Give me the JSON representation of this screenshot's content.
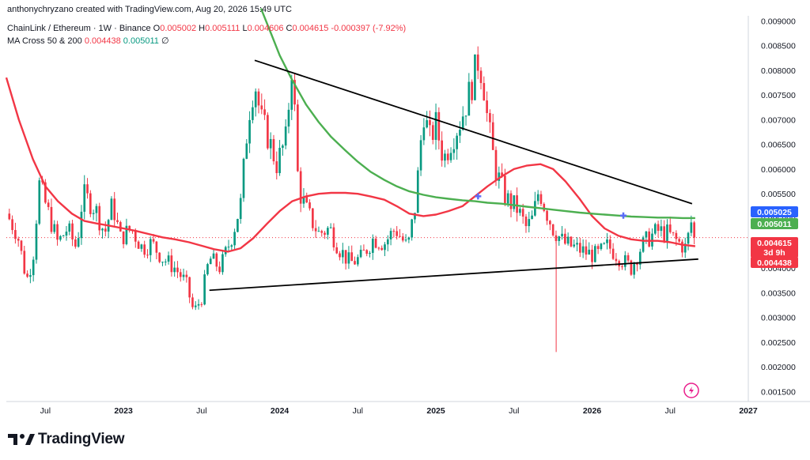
{
  "header": {
    "credit": "anthonychryzano created with TradingView.com, Aug 20, 2026 15:49 UTC",
    "symbol": "ChainLink / Ethereum · 1W · Binance",
    "o_label": "O",
    "o_value": "0.005002",
    "h_label": "H",
    "h_value": "0.005111",
    "l_label": "L",
    "l_value": "0.004606",
    "c_label": "C",
    "c_value": "0.004615",
    "change": "-0.000397 (-7.92%)",
    "indicator": "MA Cross 50 & 200",
    "ma_fast_value": "0.004438",
    "ma_slow_value": "0.005011",
    "indicator_symbol": "∅"
  },
  "brand": {
    "name": "TradingView"
  },
  "colors": {
    "up": "#089981",
    "down": "#f23645",
    "ma_fast": "#f23645",
    "ma_slow": "#4caf50",
    "trendline": "#000000",
    "cross": "#5b6cf7"
  },
  "badges": {
    "ma_slow_top": "0.005025",
    "ma_slow": "0.005011",
    "last_price": "0.004615",
    "countdown": "3d 9h",
    "ma_fast": "0.004438"
  },
  "chart_data": {
    "type": "candlestick",
    "timeframe": "1W",
    "y_axis_ticks": [
      "0.009000",
      "0.008500",
      "0.008000",
      "0.007500",
      "0.007000",
      "0.006500",
      "0.006000",
      "0.005500",
      "0.005000",
      "0.004500",
      "0.004000",
      "0.003500",
      "0.003000",
      "0.002500",
      "0.002000",
      "0.001500"
    ],
    "x_axis_ticks": [
      "Jul",
      "2023",
      "Jul",
      "2024",
      "Jul",
      "2025",
      "Jul",
      "2026",
      "Jul",
      "2027"
    ],
    "ylim": [
      0.0013,
      0.0091
    ],
    "xlim": [
      2022.25,
      2027.0
    ],
    "ohlc_anchors": [
      {
        "t": 2022.25,
        "close": 0.0051
      },
      {
        "t": 2022.32,
        "close": 0.0047
      },
      {
        "t": 2022.38,
        "close": 0.00375
      },
      {
        "t": 2022.42,
        "close": 0.0042
      },
      {
        "t": 2022.46,
        "close": 0.0057
      },
      {
        "t": 2022.52,
        "close": 0.0051
      },
      {
        "t": 2022.58,
        "close": 0.0045
      },
      {
        "t": 2022.64,
        "close": 0.0048
      },
      {
        "t": 2022.7,
        "close": 0.0044
      },
      {
        "t": 2022.74,
        "close": 0.0055
      },
      {
        "t": 2022.82,
        "close": 0.0052
      },
      {
        "t": 2022.88,
        "close": 0.0047
      },
      {
        "t": 2022.93,
        "close": 0.0053
      },
      {
        "t": 2022.98,
        "close": 0.0046
      },
      {
        "t": 2023.05,
        "close": 0.0048
      },
      {
        "t": 2023.12,
        "close": 0.0044
      },
      {
        "t": 2023.18,
        "close": 0.0045
      },
      {
        "t": 2023.25,
        "close": 0.0042
      },
      {
        "t": 2023.33,
        "close": 0.004
      },
      {
        "t": 2023.4,
        "close": 0.0037
      },
      {
        "t": 2023.45,
        "close": 0.0031
      },
      {
        "t": 2023.5,
        "close": 0.0034
      },
      {
        "t": 2023.55,
        "close": 0.0042
      },
      {
        "t": 2023.62,
        "close": 0.004
      },
      {
        "t": 2023.7,
        "close": 0.0047
      },
      {
        "t": 2023.75,
        "close": 0.0053
      },
      {
        "t": 2023.8,
        "close": 0.0071
      },
      {
        "t": 2023.84,
        "close": 0.0078
      },
      {
        "t": 2023.88,
        "close": 0.007
      },
      {
        "t": 2023.92,
        "close": 0.0067
      },
      {
        "t": 2023.98,
        "close": 0.0061
      },
      {
        "t": 2024.04,
        "close": 0.0066
      },
      {
        "t": 2024.08,
        "close": 0.0082
      },
      {
        "t": 2024.12,
        "close": 0.0056
      },
      {
        "t": 2024.18,
        "close": 0.0051
      },
      {
        "t": 2024.25,
        "close": 0.0047
      },
      {
        "t": 2024.32,
        "close": 0.0048
      },
      {
        "t": 2024.38,
        "close": 0.0044
      },
      {
        "t": 2024.45,
        "close": 0.0041
      },
      {
        "t": 2024.52,
        "close": 0.0042
      },
      {
        "t": 2024.6,
        "close": 0.0046
      },
      {
        "t": 2024.67,
        "close": 0.0045
      },
      {
        "t": 2024.74,
        "close": 0.0048
      },
      {
        "t": 2024.82,
        "close": 0.0044
      },
      {
        "t": 2024.87,
        "close": 0.0053
      },
      {
        "t": 2024.92,
        "close": 0.0072
      },
      {
        "t": 2024.96,
        "close": 0.0066
      },
      {
        "t": 2025.0,
        "close": 0.0069
      },
      {
        "t": 2025.05,
        "close": 0.0062
      },
      {
        "t": 2025.1,
        "close": 0.0066
      },
      {
        "t": 2025.16,
        "close": 0.007
      },
      {
        "t": 2025.22,
        "close": 0.0076
      },
      {
        "t": 2025.27,
        "close": 0.0082
      },
      {
        "t": 2025.3,
        "close": 0.0079
      },
      {
        "t": 2025.33,
        "close": 0.007
      },
      {
        "t": 2025.38,
        "close": 0.006
      },
      {
        "t": 2025.45,
        "close": 0.0054
      },
      {
        "t": 2025.52,
        "close": 0.0052
      },
      {
        "t": 2025.58,
        "close": 0.0048
      },
      {
        "t": 2025.62,
        "close": 0.005
      },
      {
        "t": 2025.66,
        "close": 0.0056
      },
      {
        "t": 2025.7,
        "close": 0.0052
      },
      {
        "t": 2025.75,
        "close": 0.0048
      },
      {
        "t": 2025.82,
        "close": 0.0045
      },
      {
        "t": 2025.9,
        "close": 0.0044
      },
      {
        "t": 2025.97,
        "close": 0.0043
      },
      {
        "t": 2026.03,
        "close": 0.00425
      },
      {
        "t": 2026.1,
        "close": 0.00445
      },
      {
        "t": 2026.18,
        "close": 0.0042
      },
      {
        "t": 2026.25,
        "close": 0.004
      },
      {
        "t": 2026.31,
        "close": 0.0044
      },
      {
        "t": 2026.36,
        "close": 0.0046
      },
      {
        "t": 2026.42,
        "close": 0.00475
      },
      {
        "t": 2026.48,
        "close": 0.0047
      },
      {
        "t": 2026.54,
        "close": 0.00455
      },
      {
        "t": 2026.6,
        "close": 0.0044
      },
      {
        "t": 2026.64,
        "close": 0.005
      },
      {
        "t": 2026.66,
        "close": 0.004615
      }
    ],
    "series": [
      {
        "name": "MA 50",
        "color": "#f23645",
        "points": [
          [
            2022.25,
            0.00785
          ],
          [
            2022.33,
            0.007
          ],
          [
            2022.42,
            0.0062
          ],
          [
            2022.5,
            0.00565
          ],
          [
            2022.58,
            0.00535
          ],
          [
            2022.67,
            0.0051
          ],
          [
            2022.75,
            0.00495
          ],
          [
            2022.83,
            0.0049
          ],
          [
            2022.92,
            0.00485
          ],
          [
            2023.0,
            0.0048
          ],
          [
            2023.08,
            0.00475
          ],
          [
            2023.17,
            0.00468
          ],
          [
            2023.25,
            0.00462
          ],
          [
            2023.33,
            0.00458
          ],
          [
            2023.42,
            0.00452
          ],
          [
            2023.5,
            0.00445
          ],
          [
            2023.58,
            0.00438
          ],
          [
            2023.67,
            0.00433
          ],
          [
            2023.75,
            0.0044
          ],
          [
            2023.83,
            0.0046
          ],
          [
            2023.92,
            0.0049
          ],
          [
            2024.0,
            0.00515
          ],
          [
            2024.08,
            0.00535
          ],
          [
            2024.17,
            0.00545
          ],
          [
            2024.25,
            0.0055
          ],
          [
            2024.33,
            0.00552
          ],
          [
            2024.42,
            0.00552
          ],
          [
            2024.5,
            0.0055
          ],
          [
            2024.58,
            0.00545
          ],
          [
            2024.67,
            0.00538
          ],
          [
            2024.75,
            0.00525
          ],
          [
            2024.83,
            0.0051
          ],
          [
            2024.92,
            0.00505
          ],
          [
            2025.0,
            0.00508
          ],
          [
            2025.08,
            0.00515
          ],
          [
            2025.17,
            0.00525
          ],
          [
            2025.25,
            0.00545
          ],
          [
            2025.33,
            0.00565
          ],
          [
            2025.42,
            0.00585
          ],
          [
            2025.5,
            0.006
          ],
          [
            2025.58,
            0.00607
          ],
          [
            2025.67,
            0.0061
          ],
          [
            2025.75,
            0.006
          ],
          [
            2025.83,
            0.00575
          ],
          [
            2025.92,
            0.0054
          ],
          [
            2026.0,
            0.00505
          ],
          [
            2026.08,
            0.0048
          ],
          [
            2026.17,
            0.00465
          ],
          [
            2026.25,
            0.00458
          ],
          [
            2026.33,
            0.00455
          ],
          [
            2026.42,
            0.00455
          ],
          [
            2026.5,
            0.00452
          ],
          [
            2026.58,
            0.00447
          ],
          [
            2026.66,
            0.00444
          ]
        ]
      },
      {
        "name": "MA 200",
        "color": "#4caf50",
        "points": [
          [
            2023.88,
            0.00925
          ],
          [
            2023.95,
            0.0087
          ],
          [
            2024.0,
            0.0083
          ],
          [
            2024.08,
            0.0078
          ],
          [
            2024.17,
            0.0073
          ],
          [
            2024.25,
            0.00695
          ],
          [
            2024.33,
            0.00665
          ],
          [
            2024.42,
            0.00638
          ],
          [
            2024.5,
            0.00615
          ],
          [
            2024.58,
            0.00595
          ],
          [
            2024.67,
            0.00578
          ],
          [
            2024.75,
            0.00565
          ],
          [
            2024.83,
            0.00555
          ],
          [
            2024.92,
            0.00548
          ],
          [
            2025.0,
            0.00543
          ],
          [
            2025.08,
            0.0054
          ],
          [
            2025.17,
            0.00537
          ],
          [
            2025.25,
            0.00535
          ],
          [
            2025.33,
            0.00532
          ],
          [
            2025.42,
            0.0053
          ],
          [
            2025.5,
            0.00527
          ],
          [
            2025.58,
            0.00524
          ],
          [
            2025.67,
            0.00521
          ],
          [
            2025.75,
            0.00518
          ],
          [
            2025.83,
            0.00515
          ],
          [
            2025.92,
            0.00512
          ],
          [
            2026.0,
            0.0051
          ],
          [
            2026.08,
            0.00508
          ],
          [
            2026.17,
            0.00506
          ],
          [
            2026.25,
            0.00504
          ],
          [
            2026.33,
            0.00503
          ],
          [
            2026.42,
            0.00502
          ],
          [
            2026.5,
            0.00502
          ],
          [
            2026.58,
            0.00501
          ],
          [
            2026.66,
            0.00501
          ]
        ]
      }
    ],
    "trendlines": [
      {
        "from": [
          2023.84,
          0.0082
        ],
        "to": [
          2026.64,
          0.0053
        ]
      },
      {
        "from": [
          2023.55,
          0.00355
        ],
        "to": [
          2026.68,
          0.00418
        ]
      }
    ],
    "crosses": [
      {
        "t": 2025.27,
        "value": 0.00545
      },
      {
        "t": 2026.2,
        "value": 0.00506
      }
    ],
    "last_price": 0.004615,
    "grid": false
  }
}
